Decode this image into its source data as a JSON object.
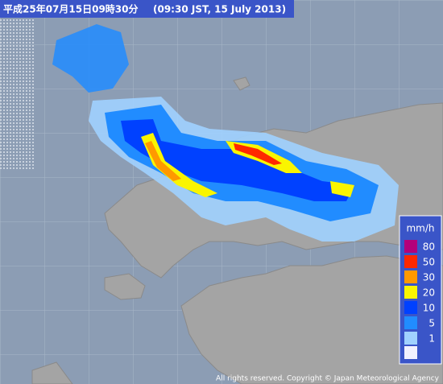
{
  "header": {
    "title_ja": "平成25年07月15日09時30分",
    "title_en": "(09:30 JST, 15 July 2013)"
  },
  "legend": {
    "unit": "mm/h",
    "items": [
      {
        "value": 80,
        "color": "#b4007a"
      },
      {
        "value": 50,
        "color": "#ff2800"
      },
      {
        "value": 30,
        "color": "#ff9900"
      },
      {
        "value": 20,
        "color": "#faf500"
      },
      {
        "value": 10,
        "color": "#0041ff"
      },
      {
        "value": 5,
        "color": "#218cff"
      },
      {
        "value": 1,
        "color": "#a0d2ff"
      }
    ]
  },
  "footer": {
    "copyright": "All rights reserved. Copyright © Japan Meteorological Agency"
  }
}
